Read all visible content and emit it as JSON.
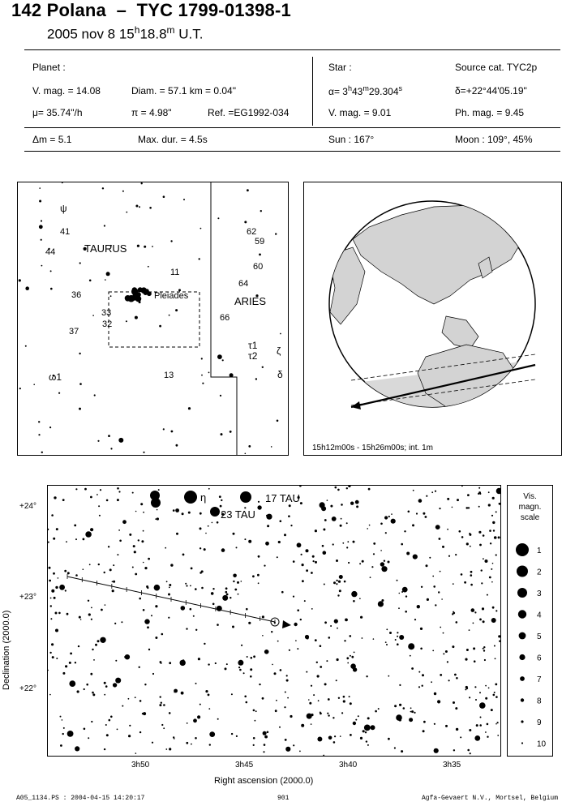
{
  "header": {
    "object": "142 Polana",
    "separator": "–",
    "star_id": "TYC 1799-01398-1",
    "date": "2005 nov  8  15",
    "date_h": "h",
    "date_min": "18.8",
    "date_m": "m",
    "date_ut": " U.T."
  },
  "planet": {
    "heading": "Planet :",
    "vmag": "V. mag. = 14.08",
    "diam": "Diam. = 57.1 km = 0.04\"",
    "mu": "μ=  35.74\"/h",
    "pi": "π =  4.98\"",
    "ref": "Ref. =EG1992-034",
    "dm": "Δm  = 5.1",
    "maxdur": "Max. dur. = 4.5s"
  },
  "star": {
    "heading": "Star :",
    "source": "Source cat.  TYC2p",
    "alpha": "α=  3",
    "alpha_h": "h",
    "alpha_val": "43",
    "alpha_m": "m",
    "alpha_s_val": "29.304",
    "alpha_s": "s",
    "delta": "δ=+22°44'05.19\"",
    "vmag": "V. mag. =  9.01",
    "phmag": "Ph. mag. =  9.45",
    "sun": "Sun : 167°",
    "moon": "Moon : 109°, 45%"
  },
  "finder": {
    "labels": {
      "psi": "ψ",
      "n41": "41",
      "n44": "44",
      "taurus": "TAURUS",
      "n11": "11",
      "n36": "36",
      "pleiades": "Pleiades",
      "n33": "33",
      "n32": "32",
      "n37": "37",
      "omega1": "ω1",
      "n13": "13",
      "n62": "62",
      "n59": "59",
      "n60": "60",
      "n64": "64",
      "aries": "ARIES",
      "n66": "66",
      "tau1": "τ1",
      "tau2": "τ2",
      "zeta": "ζ",
      "delta": "δ"
    }
  },
  "globe": {
    "caption": "15h12m00s - 15h26m00s; int.  1m"
  },
  "chart": {
    "star_label_1": "17 TAU",
    "star_label_2": "23 TAU",
    "eta": "η",
    "ylabel": "Declination (2000.0)",
    "xlabel": "Right ascension (2000.0)",
    "yticks": [
      "+24°",
      "+23°",
      "+22°"
    ],
    "xticks": [
      "3h50",
      "3h45",
      "3h40",
      "3h35"
    ]
  },
  "chart_data": {
    "type": "scatter",
    "title": "",
    "xlabel": "Right ascension (2000.0)",
    "ylabel": "Declination (2000.0)",
    "x_tick_labels": [
      "3h50",
      "3h45",
      "3h40",
      "3h35"
    ],
    "y_tick_labels": [
      "+24°",
      "+23°",
      "+22°"
    ]
  },
  "scale": {
    "title": [
      "Vis.",
      "magn.",
      "scale"
    ],
    "entries": [
      "1",
      "2",
      "3",
      "4",
      "5",
      "6",
      "7",
      "8",
      "9",
      "10"
    ]
  },
  "footer": {
    "left": "A05_1134.PS : 2004-04-15 14:20:17",
    "center": "901",
    "right": "Agfa-Gevaert N.V., Mortsel, Belgium"
  }
}
